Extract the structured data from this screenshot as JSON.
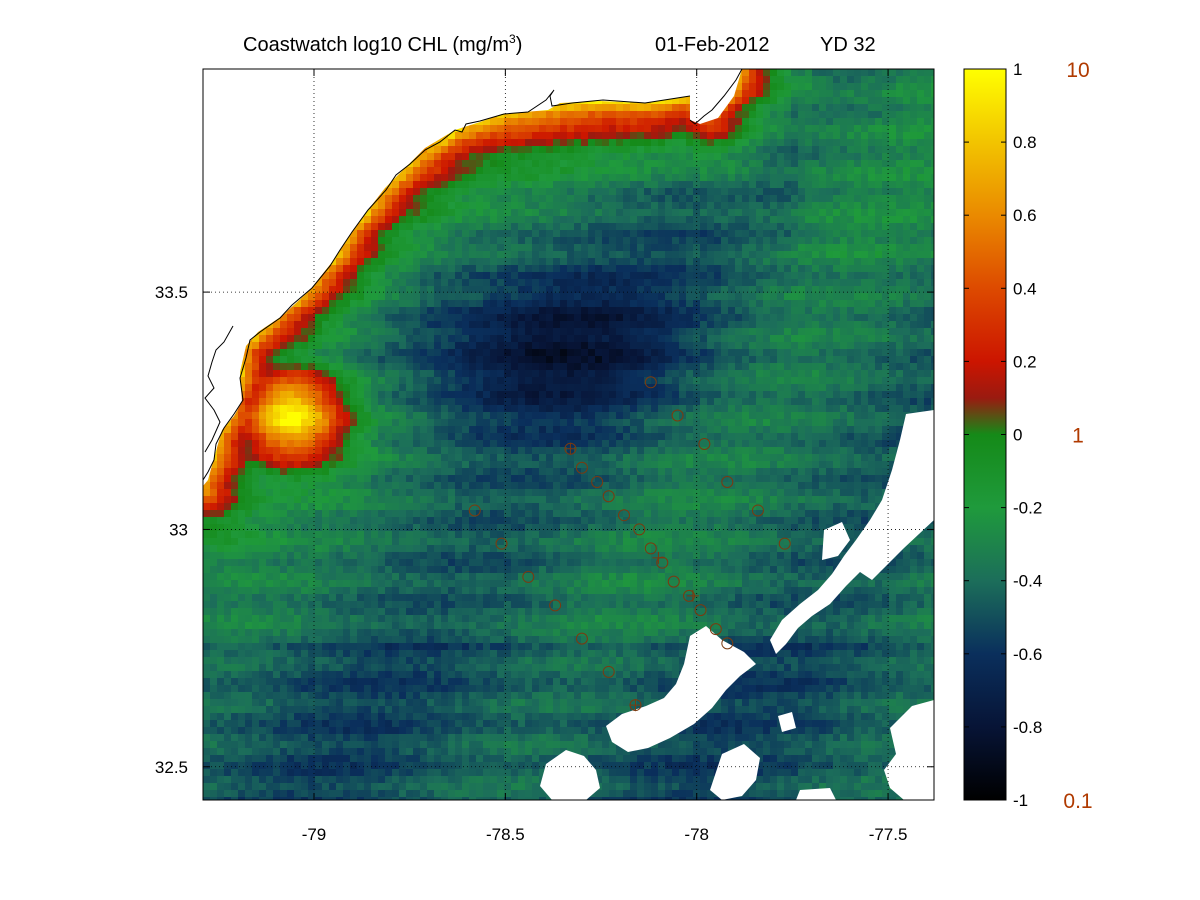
{
  "chart_data": {
    "type": "heatmap",
    "title": "Coastwatch  log10  CHL (mg/m",
    "title_superscript": "3",
    "title_suffix": ")",
    "date_label": "01-Feb-2012",
    "yearday_label": "YD 32",
    "xlim": [
      -79.29,
      -77.38
    ],
    "ylim": [
      32.43,
      33.97
    ],
    "x_ticks": [
      -79,
      -78.5,
      -78,
      -77.5
    ],
    "x_tick_labels": [
      "-79",
      "-78.5",
      "-78",
      "-77.5"
    ],
    "y_ticks": [
      32.5,
      33,
      33.5
    ],
    "y_tick_labels": [
      "32.5",
      "33",
      "33.5"
    ],
    "grid": "dotted",
    "colorbar": {
      "range": [
        -1,
        1
      ],
      "ticks": [
        1,
        0.8,
        0.6,
        0.4,
        0.2,
        0,
        -0.2,
        -0.4,
        -0.6,
        -0.8,
        -1
      ],
      "tick_labels": [
        "1",
        "0.8",
        "0.6",
        "0.4",
        "0.2",
        "0",
        "-0.2",
        "-0.4",
        "-0.6",
        "-0.8",
        "-1"
      ],
      "linear_labels": [
        {
          "value": 1,
          "label": "10"
        },
        {
          "value": 0,
          "label": "1"
        },
        {
          "value": -1,
          "label": "0.1"
        }
      ],
      "stops": [
        {
          "v": -1.0,
          "color": "#000000"
        },
        {
          "v": -0.8,
          "color": "#071436"
        },
        {
          "v": -0.6,
          "color": "#0a2f5c"
        },
        {
          "v": -0.4,
          "color": "#1c6e5a"
        },
        {
          "v": -0.2,
          "color": "#1f9a3c"
        },
        {
          "v": 0.0,
          "color": "#158a18"
        },
        {
          "v": 0.1,
          "color": "#9a1a10"
        },
        {
          "v": 0.2,
          "color": "#cc1500"
        },
        {
          "v": 0.4,
          "color": "#dd4a00"
        },
        {
          "v": 0.6,
          "color": "#ea8a00"
        },
        {
          "v": 0.8,
          "color": "#f2c400"
        },
        {
          "v": 1.0,
          "color": "#ffff00"
        }
      ]
    },
    "stations": [
      {
        "lon": -78.12,
        "lat": 33.31
      },
      {
        "lon": -78.05,
        "lat": 33.24
      },
      {
        "lon": -77.98,
        "lat": 33.18
      },
      {
        "lon": -77.92,
        "lat": 33.1
      },
      {
        "lon": -77.84,
        "lat": 33.04
      },
      {
        "lon": -77.77,
        "lat": 32.97
      },
      {
        "lon": -78.33,
        "lat": 33.17
      },
      {
        "lon": -78.3,
        "lat": 33.13
      },
      {
        "lon": -78.26,
        "lat": 33.1
      },
      {
        "lon": -78.23,
        "lat": 33.07
      },
      {
        "lon": -78.19,
        "lat": 33.03
      },
      {
        "lon": -78.15,
        "lat": 33.0
      },
      {
        "lon": -78.12,
        "lat": 32.96
      },
      {
        "lon": -78.09,
        "lat": 32.93
      },
      {
        "lon": -78.06,
        "lat": 32.89
      },
      {
        "lon": -78.02,
        "lat": 32.86
      },
      {
        "lon": -77.99,
        "lat": 32.83
      },
      {
        "lon": -77.95,
        "lat": 32.79
      },
      {
        "lon": -77.92,
        "lat": 32.76
      },
      {
        "lon": -78.58,
        "lat": 33.04
      },
      {
        "lon": -78.51,
        "lat": 32.97
      },
      {
        "lon": -78.44,
        "lat": 32.9
      },
      {
        "lon": -78.37,
        "lat": 32.84
      },
      {
        "lon": -78.3,
        "lat": 32.77
      },
      {
        "lon": -78.23,
        "lat": 32.7
      },
      {
        "lon": -78.16,
        "lat": 32.63
      }
    ],
    "station_markers": [
      {
        "lon": -78.33,
        "lat": 33.17
      },
      {
        "lon": -78.1,
        "lat": 32.94
      },
      {
        "lon": -78.01,
        "lat": 32.86
      },
      {
        "lon": -78.16,
        "lat": 32.63
      }
    ]
  }
}
